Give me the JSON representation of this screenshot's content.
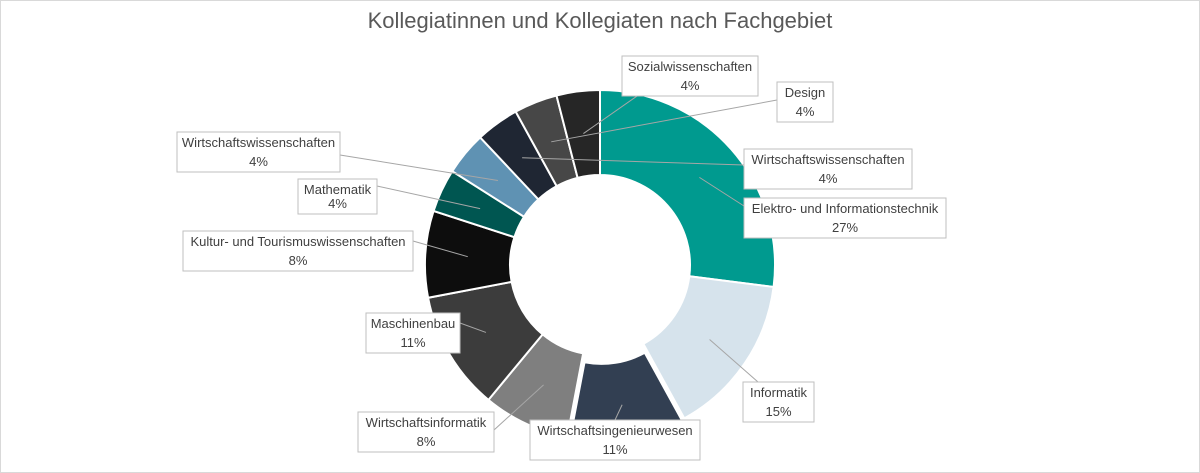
{
  "chart_data": {
    "type": "pie",
    "variant": "doughnut",
    "title": "Kollegiatinnen und Kollegiaten nach Fachgebiet",
    "slices": [
      {
        "label": "Elektro- und Informationstechnik",
        "value": 27,
        "display": "27%",
        "color": "#009a8f"
      },
      {
        "label": "Informatik",
        "value": 15,
        "display": "15%",
        "color": "#d6e3ec"
      },
      {
        "label": "Wirtschaftsingenieurwesen",
        "value": 11,
        "display": "11%",
        "color": "#323f52"
      },
      {
        "label": "Wirtschaftsinformatik",
        "value": 8,
        "display": "8%",
        "color": "#7f7f7f"
      },
      {
        "label": "Maschinenbau",
        "value": 11,
        "display": "11%",
        "color": "#3c3c3c"
      },
      {
        "label": "Kultur- und Tourismuswissenschaften",
        "value": 8,
        "display": "8%",
        "color": "#0d0d0d"
      },
      {
        "label": "Mathematik",
        "value": 4,
        "display": "4%",
        "color": "#005651"
      },
      {
        "label": "Wirtschaftswissenschaften",
        "value": 4,
        "display": "4%",
        "color": "#5f92b3"
      },
      {
        "label": "Wirtschaftswissenschaften",
        "value": 4,
        "display": "4%",
        "color": "#1f2633"
      },
      {
        "label": "Design",
        "value": 4,
        "display": "4%",
        "color": "#474747"
      },
      {
        "label": "Sozialwissenschaften",
        "value": 4,
        "display": "4%",
        "color": "#262626"
      }
    ],
    "legend": "none"
  }
}
